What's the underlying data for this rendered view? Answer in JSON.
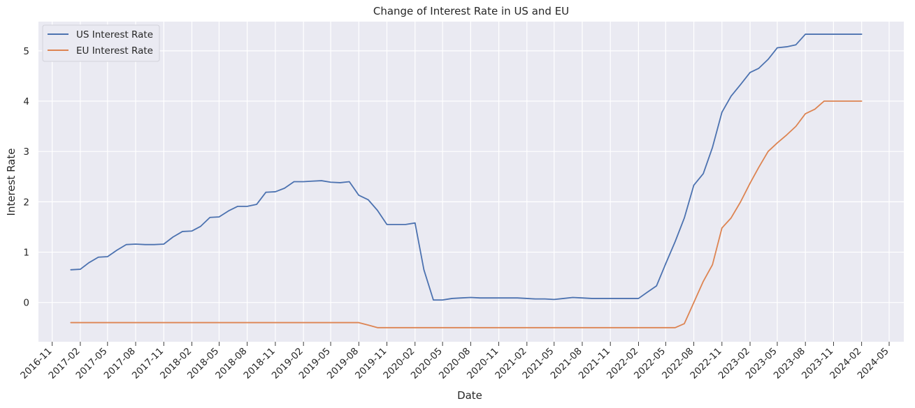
{
  "chart_data": {
    "type": "line",
    "title": "Change of Interest Rate in US and EU",
    "xlabel": "Date",
    "ylabel": "Interest Rate",
    "xlim": [
      "2016-09-17",
      "2024-06-18"
    ],
    "ylim": [
      -0.78,
      5.58
    ],
    "x_ticks": [
      "2016-11",
      "2017-02",
      "2017-05",
      "2017-08",
      "2017-11",
      "2018-02",
      "2018-05",
      "2018-08",
      "2018-11",
      "2019-02",
      "2019-05",
      "2019-08",
      "2019-11",
      "2020-02",
      "2020-05",
      "2020-08",
      "2020-11",
      "2021-02",
      "2021-05",
      "2021-08",
      "2021-11",
      "2022-02",
      "2022-05",
      "2022-08",
      "2022-11",
      "2023-02",
      "2023-05",
      "2023-08",
      "2023-11",
      "2024-02",
      "2024-05"
    ],
    "y_ticks": [
      0,
      1,
      2,
      3,
      4,
      5
    ],
    "grid": true,
    "legend_position": "top-left",
    "x": [
      "2017-01",
      "2017-02",
      "2017-03",
      "2017-04",
      "2017-05",
      "2017-06",
      "2017-07",
      "2017-08",
      "2017-09",
      "2017-10",
      "2017-11",
      "2017-12",
      "2018-01",
      "2018-02",
      "2018-03",
      "2018-04",
      "2018-05",
      "2018-06",
      "2018-07",
      "2018-08",
      "2018-09",
      "2018-10",
      "2018-11",
      "2018-12",
      "2019-01",
      "2019-02",
      "2019-03",
      "2019-04",
      "2019-05",
      "2019-06",
      "2019-07",
      "2019-08",
      "2019-09",
      "2019-10",
      "2019-11",
      "2019-12",
      "2020-01",
      "2020-02",
      "2020-03",
      "2020-04",
      "2020-05",
      "2020-06",
      "2020-07",
      "2020-08",
      "2020-09",
      "2020-10",
      "2020-11",
      "2020-12",
      "2021-01",
      "2021-02",
      "2021-03",
      "2021-04",
      "2021-05",
      "2021-06",
      "2021-07",
      "2021-08",
      "2021-09",
      "2021-10",
      "2021-11",
      "2021-12",
      "2022-01",
      "2022-02",
      "2022-03",
      "2022-04",
      "2022-05",
      "2022-06",
      "2022-07",
      "2022-08",
      "2022-09",
      "2022-10",
      "2022-11",
      "2022-12",
      "2023-01",
      "2023-02",
      "2023-03",
      "2023-04",
      "2023-05",
      "2023-06",
      "2023-07",
      "2023-08",
      "2023-09",
      "2023-10",
      "2023-11",
      "2023-12",
      "2024-01",
      "2024-02"
    ],
    "series": [
      {
        "name": "US Interest Rate",
        "color": "#4c72b0",
        "values": [
          0.65,
          0.66,
          0.79,
          0.9,
          0.91,
          1.04,
          1.15,
          1.16,
          1.15,
          1.15,
          1.16,
          1.3,
          1.41,
          1.42,
          1.51,
          1.69,
          1.7,
          1.82,
          1.91,
          1.91,
          1.95,
          2.19,
          2.2,
          2.27,
          2.4,
          2.4,
          2.41,
          2.42,
          2.39,
          2.38,
          2.4,
          2.13,
          2.04,
          1.83,
          1.55,
          1.55,
          1.55,
          1.58,
          0.65,
          0.05,
          0.05,
          0.08,
          0.09,
          0.1,
          0.09,
          0.09,
          0.09,
          0.09,
          0.09,
          0.08,
          0.07,
          0.07,
          0.06,
          0.08,
          0.1,
          0.09,
          0.08,
          0.08,
          0.08,
          0.08,
          0.08,
          0.08,
          0.2,
          0.33,
          0.77,
          1.21,
          1.68,
          2.33,
          2.56,
          3.08,
          3.78,
          4.1,
          4.33,
          4.57,
          4.65,
          4.83,
          5.06,
          5.08,
          5.12,
          5.33,
          5.33,
          5.33,
          5.33,
          5.33,
          5.33,
          5.33
        ]
      },
      {
        "name": "EU Interest Rate",
        "color": "#dd8452",
        "values": [
          -0.4,
          -0.4,
          -0.4,
          -0.4,
          -0.4,
          -0.4,
          -0.4,
          -0.4,
          -0.4,
          -0.4,
          -0.4,
          -0.4,
          -0.4,
          -0.4,
          -0.4,
          -0.4,
          -0.4,
          -0.4,
          -0.4,
          -0.4,
          -0.4,
          -0.4,
          -0.4,
          -0.4,
          -0.4,
          -0.4,
          -0.4,
          -0.4,
          -0.4,
          -0.4,
          -0.4,
          -0.4,
          -0.45,
          -0.5,
          -0.5,
          -0.5,
          -0.5,
          -0.5,
          -0.5,
          -0.5,
          -0.5,
          -0.5,
          -0.5,
          -0.5,
          -0.5,
          -0.5,
          -0.5,
          -0.5,
          -0.5,
          -0.5,
          -0.5,
          -0.5,
          -0.5,
          -0.5,
          -0.5,
          -0.5,
          -0.5,
          -0.5,
          -0.5,
          -0.5,
          -0.5,
          -0.5,
          -0.5,
          -0.5,
          -0.5,
          -0.5,
          -0.42,
          0.0,
          0.42,
          0.75,
          1.48,
          1.68,
          2.0,
          2.37,
          2.68,
          3.0,
          3.17,
          3.33,
          3.5,
          3.75,
          3.84,
          4.0,
          4.0,
          4.0,
          4.0,
          4.0
        ]
      }
    ]
  }
}
